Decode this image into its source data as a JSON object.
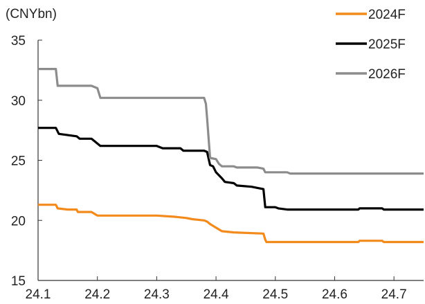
{
  "chart_data": {
    "type": "line",
    "title": "",
    "unit_label": "(CNYbn)",
    "xlabel": "",
    "ylabel": "",
    "x_ticks": [
      "24.1",
      "24.2",
      "24.3",
      "24.4",
      "24.5",
      "24.6",
      "24.7"
    ],
    "y_ticks": [
      "15",
      "20",
      "25",
      "30",
      "35"
    ],
    "xlim": [
      24.1,
      24.75
    ],
    "ylim": [
      15,
      35
    ],
    "grid": false,
    "legend_position": "top-right",
    "series": [
      {
        "name": "2024F",
        "color": "#f28a1c",
        "points": [
          [
            24.1,
            21.3
          ],
          [
            24.13,
            21.3
          ],
          [
            24.133,
            21.0
          ],
          [
            24.15,
            20.9
          ],
          [
            24.165,
            20.9
          ],
          [
            24.167,
            20.7
          ],
          [
            24.19,
            20.7
          ],
          [
            24.2,
            20.4
          ],
          [
            24.25,
            20.4
          ],
          [
            24.3,
            20.4
          ],
          [
            24.33,
            20.3
          ],
          [
            24.35,
            20.2
          ],
          [
            24.36,
            20.1
          ],
          [
            24.38,
            20.0
          ],
          [
            24.385,
            19.9
          ],
          [
            24.39,
            19.7
          ],
          [
            24.4,
            19.4
          ],
          [
            24.41,
            19.1
          ],
          [
            24.43,
            19.0
          ],
          [
            24.48,
            18.9
          ],
          [
            24.483,
            18.4
          ],
          [
            24.485,
            18.2
          ],
          [
            24.5,
            18.2
          ],
          [
            24.55,
            18.2
          ],
          [
            24.6,
            18.2
          ],
          [
            24.64,
            18.2
          ],
          [
            24.642,
            18.3
          ],
          [
            24.68,
            18.3
          ],
          [
            24.683,
            18.2
          ],
          [
            24.75,
            18.2
          ]
        ]
      },
      {
        "name": "2025F",
        "color": "#000000",
        "points": [
          [
            24.1,
            27.7
          ],
          [
            24.13,
            27.7
          ],
          [
            24.135,
            27.2
          ],
          [
            24.15,
            27.1
          ],
          [
            24.165,
            27.0
          ],
          [
            24.17,
            26.8
          ],
          [
            24.19,
            26.8
          ],
          [
            24.2,
            26.4
          ],
          [
            24.205,
            26.2
          ],
          [
            24.25,
            26.2
          ],
          [
            24.3,
            26.2
          ],
          [
            24.31,
            26.0
          ],
          [
            24.34,
            26.0
          ],
          [
            24.345,
            25.8
          ],
          [
            24.38,
            25.8
          ],
          [
            24.385,
            25.7
          ],
          [
            24.39,
            24.6
          ],
          [
            24.395,
            24.5
          ],
          [
            24.4,
            24.0
          ],
          [
            24.41,
            23.5
          ],
          [
            24.415,
            23.2
          ],
          [
            24.43,
            23.1
          ],
          [
            24.435,
            22.9
          ],
          [
            24.46,
            22.8
          ],
          [
            24.47,
            22.7
          ],
          [
            24.48,
            22.6
          ],
          [
            24.483,
            21.1
          ],
          [
            24.5,
            21.1
          ],
          [
            24.505,
            21.0
          ],
          [
            24.52,
            20.9
          ],
          [
            24.6,
            20.9
          ],
          [
            24.64,
            20.9
          ],
          [
            24.642,
            21.0
          ],
          [
            24.68,
            21.0
          ],
          [
            24.683,
            20.9
          ],
          [
            24.75,
            20.9
          ]
        ]
      },
      {
        "name": "2026F",
        "color": "#8c8c8c",
        "points": [
          [
            24.1,
            32.6
          ],
          [
            24.13,
            32.6
          ],
          [
            24.133,
            31.2
          ],
          [
            24.17,
            31.2
          ],
          [
            24.19,
            31.2
          ],
          [
            24.2,
            31.0
          ],
          [
            24.205,
            30.2
          ],
          [
            24.25,
            30.2
          ],
          [
            24.3,
            30.2
          ],
          [
            24.35,
            30.2
          ],
          [
            24.38,
            30.2
          ],
          [
            24.383,
            29.7
          ],
          [
            24.385,
            28.5
          ],
          [
            24.39,
            25.2
          ],
          [
            24.4,
            25.1
          ],
          [
            24.405,
            24.7
          ],
          [
            24.41,
            24.5
          ],
          [
            24.43,
            24.5
          ],
          [
            24.435,
            24.4
          ],
          [
            24.47,
            24.4
          ],
          [
            24.48,
            24.3
          ],
          [
            24.483,
            24.0
          ],
          [
            24.5,
            24.0
          ],
          [
            24.52,
            24.0
          ],
          [
            24.525,
            23.9
          ],
          [
            24.55,
            23.9
          ],
          [
            24.6,
            23.9
          ],
          [
            24.75,
            23.9
          ]
        ]
      }
    ]
  }
}
